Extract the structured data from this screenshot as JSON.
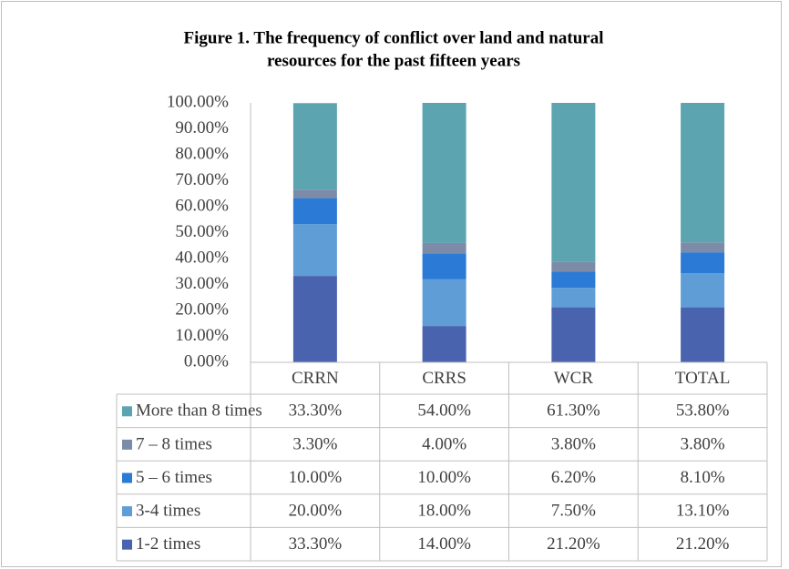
{
  "chart_data": {
    "type": "stacked_bar",
    "title": [
      "Figure 1. The frequency of conflict over land and natural",
      "resources for the past fifteen years"
    ],
    "categories": [
      "CRRN",
      "CRRS",
      "WCR",
      "TOTAL"
    ],
    "series": [
      {
        "name": "1-2 times",
        "color": "#4a63ae",
        "values": [
          33.3,
          14.0,
          21.2,
          21.2
        ],
        "value_labels": [
          "33.30%",
          "14.00%",
          "21.20%",
          "21.20%"
        ]
      },
      {
        "name": "3-4 times",
        "color": "#5f9dd6",
        "values": [
          20.0,
          18.0,
          7.5,
          13.1
        ],
        "value_labels": [
          "20.00%",
          "18.00%",
          "7.50%",
          "13.10%"
        ]
      },
      {
        "name": "5 – 6 times",
        "color": "#2a7ad6",
        "values": [
          10.0,
          10.0,
          6.2,
          8.1
        ],
        "value_labels": [
          "10.00%",
          "10.00%",
          "6.20%",
          "8.10%"
        ]
      },
      {
        "name": "7 – 8 times",
        "color": "#7c8ca8",
        "values": [
          3.3,
          4.0,
          3.8,
          3.8
        ],
        "value_labels": [
          "3.30%",
          "4.00%",
          "3.80%",
          "3.80%"
        ]
      },
      {
        "name": "More than 8 times",
        "color": "#5ba4b0",
        "values": [
          33.3,
          54.0,
          61.3,
          53.8
        ],
        "value_labels": [
          "33.30%",
          "54.00%",
          "61.30%",
          "53.80%"
        ]
      }
    ],
    "ylim": [
      0,
      100
    ],
    "yticks": [
      {
        "value": 0,
        "label": "0.00%"
      },
      {
        "value": 10,
        "label": "10.00%"
      },
      {
        "value": 20,
        "label": "20.00%"
      },
      {
        "value": 30,
        "label": "30.00%"
      },
      {
        "value": 40,
        "label": "40.00%"
      },
      {
        "value": 50,
        "label": "50.00%"
      },
      {
        "value": 60,
        "label": "60.00%"
      },
      {
        "value": 70,
        "label": "70.00%"
      },
      {
        "value": 80,
        "label": "80.00%"
      },
      {
        "value": 90,
        "label": "90.00%"
      },
      {
        "value": 100,
        "label": "100.00%"
      }
    ],
    "grid": false
  }
}
